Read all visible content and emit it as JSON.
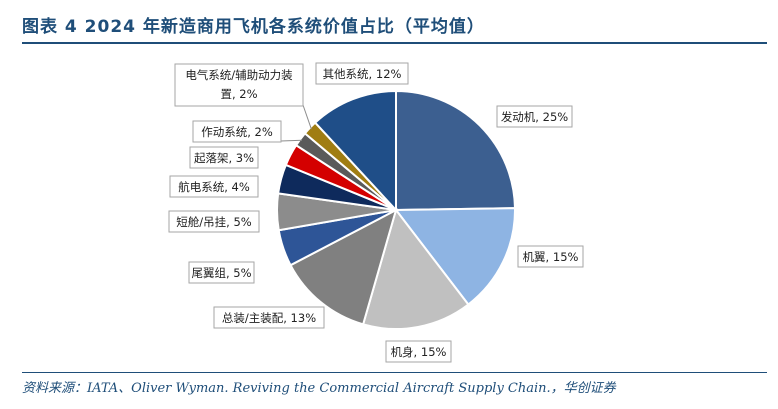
{
  "header": {
    "title": "图表 4   2024 年新造商用飞机各系统价值占比（平均值）"
  },
  "footer": {
    "source": "资料来源：IATA、Oliver Wyman. Reviving the Commercial Aircraft Supply Chain.，华创证券"
  },
  "chart_data": {
    "type": "pie",
    "title": "",
    "slices": [
      {
        "name": "发动机",
        "value": 25,
        "label": "发动机, 25%",
        "color": "#3c5f90"
      },
      {
        "name": "机翼",
        "value": 15,
        "label": "机翼, 15%",
        "color": "#8eb4e3"
      },
      {
        "name": "机身",
        "value": 15,
        "label": "机身, 15%",
        "color": "#c0c0c0"
      },
      {
        "name": "总装/主装配",
        "value": 13,
        "label": "总装/主装配, 13%",
        "color": "#808080"
      },
      {
        "name": "尾翼组",
        "value": 5,
        "label": "尾翼组, 5%",
        "color": "#2e5597"
      },
      {
        "name": "短舱/吊挂",
        "value": 5,
        "label": "短舱/吊挂, 5%",
        "color": "#8c8c8c"
      },
      {
        "name": "航电系统",
        "value": 4,
        "label": "航电系统, 4%",
        "color": "#0e2a5c"
      },
      {
        "name": "起落架",
        "value": 3,
        "label": "起落架, 3%",
        "color": "#d40000"
      },
      {
        "name": "作动系统",
        "value": 2,
        "label": "作动系统, 2%",
        "color": "#5a5a5a"
      },
      {
        "name": "电气系统/辅助动力装置",
        "value": 2,
        "label_lines": [
          "电气系统/辅助动力装",
          "置, 2%"
        ],
        "color": "#a07d12"
      },
      {
        "name": "其他系统",
        "value": 12,
        "label": "其他系统, 12%",
        "color": "#1f4e88"
      }
    ]
  }
}
